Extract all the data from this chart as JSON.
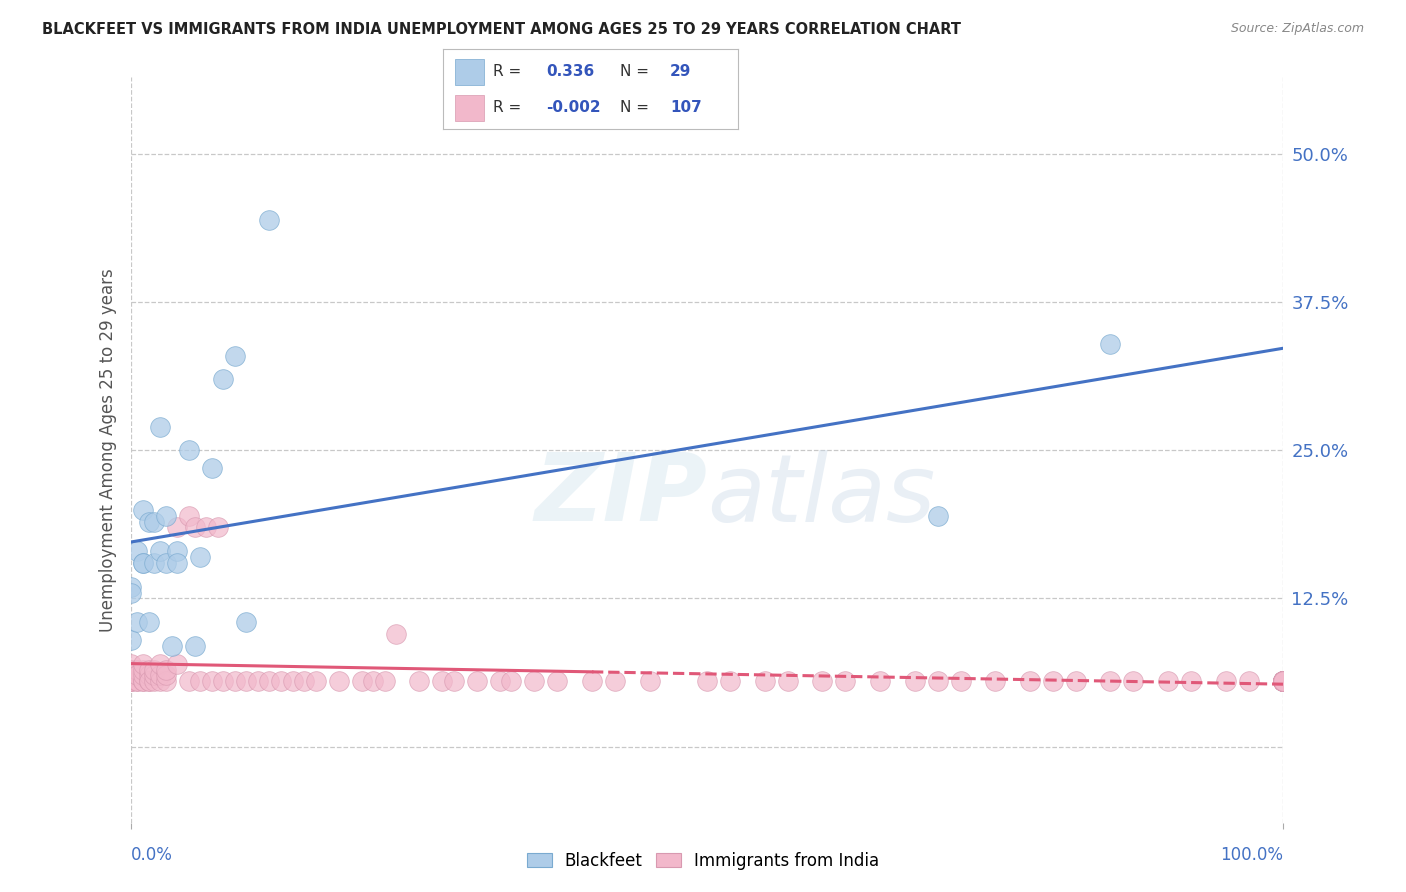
{
  "title": "BLACKFEET VS IMMIGRANTS FROM INDIA UNEMPLOYMENT AMONG AGES 25 TO 29 YEARS CORRELATION CHART",
  "source": "Source: ZipAtlas.com",
  "ylabel": "Unemployment Among Ages 25 to 29 years",
  "xlim": [
    0.0,
    1.0
  ],
  "ylim": [
    -0.065,
    0.565
  ],
  "yticks": [
    0.0,
    0.125,
    0.25,
    0.375,
    0.5
  ],
  "ytick_labels": [
    "",
    "12.5%",
    "25.0%",
    "37.5%",
    "50.0%"
  ],
  "legend_R1": "0.336",
  "legend_N1": "29",
  "legend_R2": "-0.002",
  "legend_N2": "107",
  "color_blue": "#aecce8",
  "color_pink": "#f2b8cb",
  "line_blue": "#4472c4",
  "line_pink": "#e05878",
  "background": "#ffffff",
  "grid_color": "#c8c8c8",
  "watermark": "ZIPatlas",
  "blackfeet_x": [
    0.0,
    0.0,
    0.0,
    0.005,
    0.005,
    0.01,
    0.01,
    0.01,
    0.015,
    0.015,
    0.02,
    0.02,
    0.025,
    0.025,
    0.03,
    0.03,
    0.035,
    0.04,
    0.04,
    0.05,
    0.055,
    0.06,
    0.07,
    0.08,
    0.09,
    0.1,
    0.12,
    0.7,
    0.85
  ],
  "blackfeet_y": [
    0.135,
    0.09,
    0.13,
    0.105,
    0.165,
    0.155,
    0.2,
    0.155,
    0.105,
    0.19,
    0.19,
    0.155,
    0.165,
    0.27,
    0.195,
    0.155,
    0.085,
    0.165,
    0.155,
    0.25,
    0.085,
    0.16,
    0.235,
    0.31,
    0.33,
    0.105,
    0.445,
    0.195,
    0.34
  ],
  "india_x": [
    0.0,
    0.0,
    0.0,
    0.0,
    0.0,
    0.0,
    0.0,
    0.0,
    0.0,
    0.0,
    0.005,
    0.005,
    0.005,
    0.005,
    0.005,
    0.01,
    0.01,
    0.01,
    0.01,
    0.01,
    0.015,
    0.015,
    0.015,
    0.015,
    0.02,
    0.02,
    0.02,
    0.025,
    0.025,
    0.025,
    0.03,
    0.03,
    0.03,
    0.04,
    0.04,
    0.05,
    0.05,
    0.055,
    0.06,
    0.065,
    0.07,
    0.075,
    0.08,
    0.09,
    0.1,
    0.11,
    0.12,
    0.13,
    0.14,
    0.15,
    0.16,
    0.18,
    0.2,
    0.21,
    0.22,
    0.23,
    0.25,
    0.27,
    0.28,
    0.3,
    0.32,
    0.33,
    0.35,
    0.37,
    0.4,
    0.42,
    0.45,
    0.5,
    0.52,
    0.55,
    0.57,
    0.6,
    0.62,
    0.65,
    0.68,
    0.7,
    0.72,
    0.75,
    0.78,
    0.8,
    0.82,
    0.85,
    0.87,
    0.9,
    0.92,
    0.95,
    0.97,
    1.0,
    1.0,
    1.0,
    1.0,
    1.0,
    1.0,
    1.0,
    1.0,
    1.0,
    1.0,
    1.0,
    1.0,
    1.0,
    1.0,
    1.0,
    1.0,
    1.0,
    1.0,
    1.0,
    1.0
  ],
  "india_y": [
    0.06,
    0.055,
    0.06,
    0.055,
    0.065,
    0.06,
    0.055,
    0.06,
    0.065,
    0.07,
    0.055,
    0.06,
    0.055,
    0.065,
    0.06,
    0.055,
    0.055,
    0.06,
    0.065,
    0.07,
    0.055,
    0.06,
    0.065,
    0.055,
    0.055,
    0.06,
    0.065,
    0.055,
    0.06,
    0.07,
    0.055,
    0.06,
    0.065,
    0.185,
    0.07,
    0.055,
    0.195,
    0.185,
    0.055,
    0.185,
    0.055,
    0.185,
    0.055,
    0.055,
    0.055,
    0.055,
    0.055,
    0.055,
    0.055,
    0.055,
    0.055,
    0.055,
    0.055,
    0.055,
    0.055,
    0.095,
    0.055,
    0.055,
    0.055,
    0.055,
    0.055,
    0.055,
    0.055,
    0.055,
    0.055,
    0.055,
    0.055,
    0.055,
    0.055,
    0.055,
    0.055,
    0.055,
    0.055,
    0.055,
    0.055,
    0.055,
    0.055,
    0.055,
    0.055,
    0.055,
    0.055,
    0.055,
    0.055,
    0.055,
    0.055,
    0.055,
    0.055,
    0.055,
    0.055,
    0.055,
    0.055,
    0.055,
    0.055,
    0.055,
    0.055,
    0.055,
    0.055,
    0.055,
    0.055,
    0.055,
    0.055,
    0.055,
    0.055,
    0.055,
    0.055,
    0.055,
    0.055
  ]
}
